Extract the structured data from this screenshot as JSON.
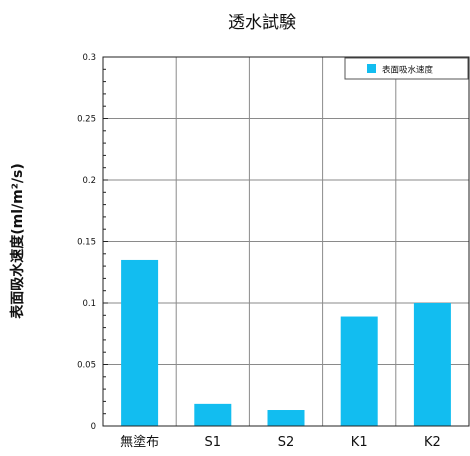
{
  "chart_data": {
    "type": "bar",
    "title": "透水試験",
    "xlabel": "",
    "ylabel": "表面吸水速度(ml/m²/s)",
    "categories": [
      "無塗布",
      "S1",
      "S2",
      "K1",
      "K2"
    ],
    "series": [
      {
        "name": "表面吸水速度",
        "values": [
          0.135,
          0.018,
          0.013,
          0.089,
          0.1
        ],
        "color": "#12bdf0"
      }
    ],
    "ylim": [
      0,
      0.3
    ],
    "yticks": [
      0,
      0.05,
      0.1,
      0.15,
      0.2,
      0.25,
      0.3
    ],
    "ytick_labels": [
      "0",
      "0.05",
      "0.1",
      "0.15",
      "0.2",
      "0.25",
      "0.3"
    ],
    "grid": true,
    "legend_position": "top-right"
  }
}
